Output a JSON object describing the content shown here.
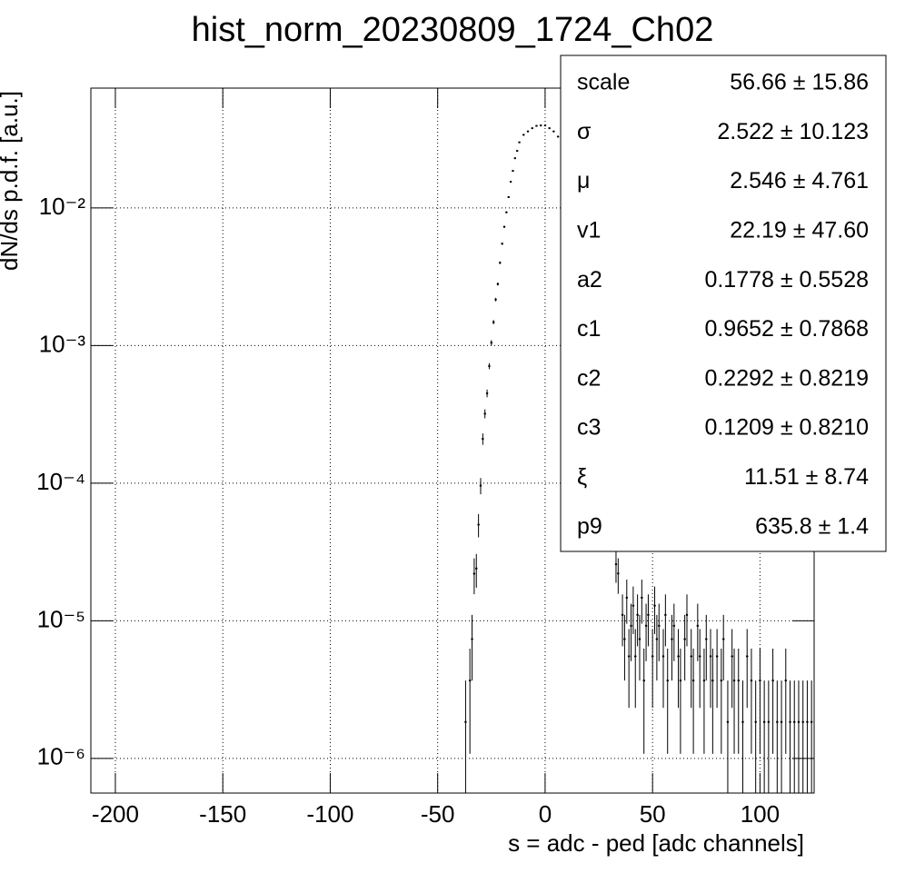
{
  "chart_data": {
    "type": "errorbar",
    "title": "hist_norm_20230809_1724_Ch02",
    "xlabel": "s = adc - ped [adc channels]",
    "ylabel": "dN/ds p.d.f. [a.u.]",
    "color": "#000000",
    "logy": true,
    "grid": true,
    "xlim": [
      -211.4,
      125.2
    ],
    "ylim": [
      5.6e-07,
      0.0743
    ],
    "xticks": [
      -200,
      -150,
      -100,
      -50,
      0,
      50,
      100
    ],
    "yticks": [
      {
        "value": 0.01,
        "label": "10⁻²"
      },
      {
        "value": 0.001,
        "label": "10⁻³"
      },
      {
        "value": 0.0001,
        "label": "10⁻⁴"
      },
      {
        "value": 1e-05,
        "label": "10⁻⁵"
      },
      {
        "value": 1e-06,
        "label": "10⁻⁶"
      }
    ],
    "x": [
      -37,
      -35,
      -34,
      -33,
      -32,
      -31,
      -30,
      -29,
      -28,
      -27,
      -26,
      -25,
      -24,
      -23,
      -22,
      -21,
      -20,
      -19,
      -18,
      -17,
      -16,
      -15,
      -14,
      -13,
      -12,
      -10,
      -8,
      -6,
      -4,
      -2,
      0,
      2,
      4,
      6,
      33,
      34,
      36,
      37,
      38,
      39,
      40,
      41,
      42,
      43,
      44,
      45,
      46,
      47,
      48,
      50,
      51,
      52,
      53,
      55,
      56,
      57,
      59,
      60,
      62,
      63,
      65,
      66,
      68,
      69,
      71,
      72,
      74,
      75,
      77,
      78,
      80,
      82,
      83,
      85,
      87,
      88,
      90,
      92,
      94,
      96,
      98,
      100,
      102,
      104,
      106,
      108,
      110,
      112,
      114,
      116,
      118,
      120,
      122,
      124
    ],
    "values": [
      1.84e-06,
      3.68e-06,
      7.36e-06,
      2.2e-05,
      2.4e-05,
      5e-05,
      9.6e-05,
      0.00021,
      0.00032,
      0.00045,
      0.00071,
      0.00105,
      0.00148,
      0.00216,
      0.0028,
      0.004,
      0.0055,
      0.0073,
      0.0093,
      0.012,
      0.0155,
      0.0186,
      0.023,
      0.026,
      0.03,
      0.034,
      0.036,
      0.038,
      0.0395,
      0.0398,
      0.0398,
      0.038,
      0.036,
      0.033,
      2.576e-05,
      2.208e-05,
      1.104e-05,
      7.36e-06,
      1.472e-05,
      5.52e-06,
      9.2e-06,
      1.288e-05,
      5.52e-06,
      1.104e-05,
      7.36e-06,
      1.472e-05,
      3.68e-06,
      9.2e-06,
      1.104e-05,
      5.52e-06,
      1.288e-05,
      7.36e-06,
      9.2e-06,
      5.52e-06,
      1.104e-05,
      3.68e-06,
      7.36e-06,
      9.2e-06,
      5.52e-06,
      3.68e-06,
      7.36e-06,
      1.104e-05,
      5.52e-06,
      3.68e-06,
      9.2e-06,
      5.52e-06,
      3.68e-06,
      7.36e-06,
      5.52e-06,
      3.68e-06,
      5.52e-06,
      3.68e-06,
      7.36e-06,
      1.84e-06,
      5.52e-06,
      3.68e-06,
      3.68e-06,
      1.84e-06,
      5.52e-06,
      3.68e-06,
      1.84e-06,
      3.68e-06,
      1.84e-06,
      1.84e-06,
      3.68e-06,
      1.84e-06,
      1.84e-06,
      3.68e-06,
      1.84e-06,
      1.84e-06,
      1.84e-06,
      1.84e-06,
      1.84e-06,
      1.84e-06
    ],
    "errors": [
      1.84e-06,
      2.6e-06,
      3.68e-06,
      6.4e-06,
      6.6e-06,
      9.6e-06,
      1.3e-05,
      2e-05,
      2.4e-05,
      2.9e-05,
      3.6e-05,
      4.4e-05,
      5.2e-05,
      6.3e-05,
      7e-05,
      8.6e-05,
      0.0001,
      0.00012,
      0.00013,
      0.00015,
      0.00017,
      0.00019,
      0.0002,
      0.00022,
      0.00023,
      0.00025,
      0.00026,
      0.00026,
      0.00027,
      0.00027,
      0.00027,
      0.00026,
      0.00026,
      0.00025,
      6.88e-06,
      6.37e-06,
      4.51e-06,
      3.68e-06,
      5.2e-06,
      3.19e-06,
      4.11e-06,
      4.87e-06,
      3.19e-06,
      4.51e-06,
      3.68e-06,
      5.2e-06,
      2.6e-06,
      4.11e-06,
      4.51e-06,
      3.19e-06,
      4.87e-06,
      3.68e-06,
      4.11e-06,
      3.19e-06,
      4.51e-06,
      2.6e-06,
      3.68e-06,
      4.11e-06,
      3.19e-06,
      2.6e-06,
      3.68e-06,
      4.51e-06,
      3.19e-06,
      2.6e-06,
      4.11e-06,
      3.19e-06,
      2.6e-06,
      3.68e-06,
      3.19e-06,
      2.6e-06,
      3.19e-06,
      2.6e-06,
      3.68e-06,
      1.84e-06,
      3.19e-06,
      2.6e-06,
      2.6e-06,
      1.84e-06,
      3.19e-06,
      2.6e-06,
      1.84e-06,
      2.6e-06,
      1.84e-06,
      1.84e-06,
      2.6e-06,
      1.84e-06,
      1.84e-06,
      2.6e-06,
      1.84e-06,
      1.84e-06,
      1.84e-06,
      1.84e-06,
      1.84e-06,
      1.84e-06
    ],
    "stats": [
      {
        "name": "scale",
        "value": "56.66 ± 15.86"
      },
      {
        "name": "σ",
        "value": "2.522 ± 10.123"
      },
      {
        "name": "μ",
        "value": "2.546 ± 4.761"
      },
      {
        "name": "v1",
        "value": "22.19 ± 47.60"
      },
      {
        "name": "a2",
        "value": "0.1778 ± 0.5528"
      },
      {
        "name": "c1",
        "value": "0.9652 ± 0.7868"
      },
      {
        "name": "c2",
        "value": "0.2292 ± 0.8219"
      },
      {
        "name": "c3",
        "value": "0.1209 ± 0.8210"
      },
      {
        "name": "ξ",
        "value": "11.51 ± 8.74"
      },
      {
        "name": "p9",
        "value": "635.8 ± 1.4"
      }
    ]
  }
}
